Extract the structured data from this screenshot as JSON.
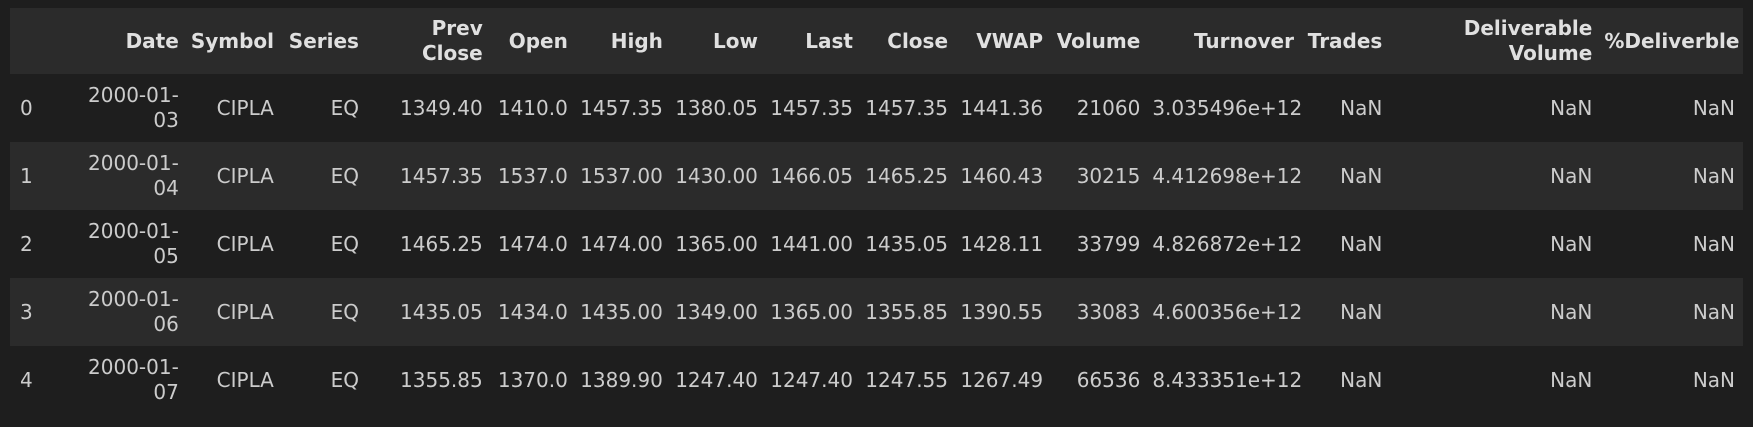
{
  "table": {
    "columns": [
      "",
      "Date",
      "Symbol",
      "Series",
      "Prev Close",
      "Open",
      "High",
      "Low",
      "Last",
      "Close",
      "VWAP",
      "Volume",
      "Turnover",
      "Trades",
      "Deliverable Volume",
      "%Deliverble"
    ],
    "rows": [
      [
        "0",
        "2000-01-03",
        "CIPLA",
        "EQ",
        "1349.40",
        "1410.0",
        "1457.35",
        "1380.05",
        "1457.35",
        "1457.35",
        "1441.36",
        "21060",
        "3.035496e+12",
        "NaN",
        "NaN",
        "NaN"
      ],
      [
        "1",
        "2000-01-04",
        "CIPLA",
        "EQ",
        "1457.35",
        "1537.0",
        "1537.00",
        "1430.00",
        "1466.05",
        "1465.25",
        "1460.43",
        "30215",
        "4.412698e+12",
        "NaN",
        "NaN",
        "NaN"
      ],
      [
        "2",
        "2000-01-05",
        "CIPLA",
        "EQ",
        "1465.25",
        "1474.0",
        "1474.00",
        "1365.00",
        "1441.00",
        "1435.05",
        "1428.11",
        "33799",
        "4.826872e+12",
        "NaN",
        "NaN",
        "NaN"
      ],
      [
        "3",
        "2000-01-06",
        "CIPLA",
        "EQ",
        "1435.05",
        "1434.0",
        "1435.00",
        "1349.00",
        "1365.00",
        "1355.85",
        "1390.55",
        "33083",
        "4.600356e+12",
        "NaN",
        "NaN",
        "NaN"
      ],
      [
        "4",
        "2000-01-07",
        "CIPLA",
        "EQ",
        "1355.85",
        "1370.0",
        "1389.90",
        "1247.40",
        "1247.40",
        "1247.55",
        "1267.49",
        "66536",
        "8.433351e+12",
        "NaN",
        "NaN",
        "NaN"
      ]
    ]
  }
}
